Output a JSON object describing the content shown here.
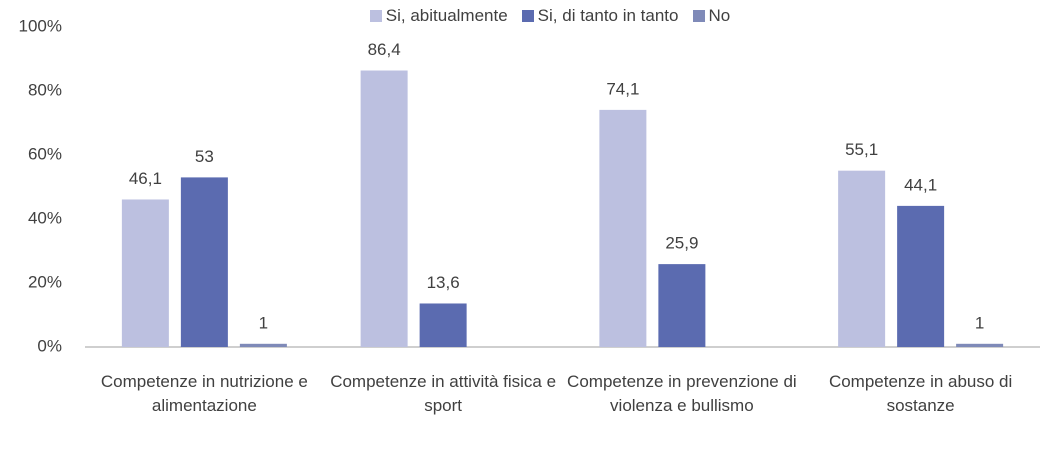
{
  "chart_data": {
    "type": "bar",
    "categories": [
      "Competenze in nutrizione e alimentazione",
      "Competenze in attività fisica e sport",
      "Competenze in prevenzione di violenza e bullismo",
      "Competenze in abuso di sostanze"
    ],
    "series": [
      {
        "name": "Si, abitualmente",
        "color": "#bcc0e0",
        "values": [
          46.1,
          86.4,
          74.1,
          55.1
        ],
        "value_labels": [
          "46,1",
          "86,4",
          "74,1",
          "55,1"
        ]
      },
      {
        "name": "Si, di tanto in tanto",
        "color": "#5b6bb0",
        "values": [
          53,
          13.6,
          25.9,
          44.1
        ],
        "value_labels": [
          "53",
          "13,6",
          "25,9",
          "44,1"
        ]
      },
      {
        "name": "No",
        "color": "#7f8ab8",
        "values": [
          1,
          null,
          null,
          1
        ],
        "value_labels": [
          "1",
          null,
          null,
          "1"
        ]
      }
    ],
    "ylim": [
      0,
      100
    ],
    "yticks": [
      {
        "value": 0,
        "label": "0%"
      },
      {
        "value": 20,
        "label": "20%"
      },
      {
        "value": 40,
        "label": "40%"
      },
      {
        "value": 60,
        "label": "60%"
      },
      {
        "value": 80,
        "label": "80%"
      },
      {
        "value": 100,
        "label": "100%"
      }
    ],
    "grid": false,
    "legend": "top"
  }
}
